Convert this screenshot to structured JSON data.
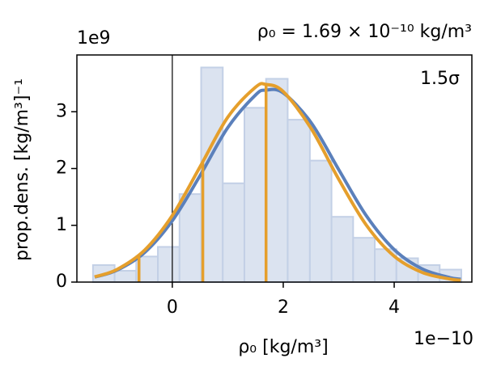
{
  "chart_data": {
    "type": "histogram",
    "title": "ρ₀ = 1.69 × 10⁻¹⁰ kg/m³",
    "annotation": "1.5σ",
    "xlabel": "ρ₀ [kg/m³]",
    "ylabel": "prop.dens. [kg/m³]⁻¹",
    "x_offset_label": "1e−10",
    "y_offset_label": "1e9",
    "bins": [
      -1.43,
      -1.04,
      -0.65,
      -0.26,
      0.13,
      0.52,
      0.91,
      1.3,
      1.69,
      2.08,
      2.48,
      2.87,
      3.26,
      3.65,
      4.04,
      4.43,
      4.82,
      5.21
    ],
    "values": [
      0.3,
      0.2,
      0.45,
      0.62,
      1.55,
      3.78,
      1.74,
      3.07,
      3.58,
      2.86,
      2.14,
      1.15,
      0.78,
      0.58,
      0.42,
      0.3,
      0.22
    ],
    "color": "#dbe3f0",
    "edgecolor": "#c3d0e6",
    "curves": [
      {
        "color": "#5b80bb",
        "x": [
          -1.4,
          -1.0,
          -0.5,
          0,
          0.5,
          1.0,
          1.5,
          1.69,
          2.0,
          2.5,
          3.0,
          3.5,
          4.0,
          4.5,
          5.0,
          5.2
        ],
        "values": [
          0.088,
          0.208,
          0.52,
          1.08,
          1.876,
          2.721,
          3.295,
          3.38,
          3.331,
          2.811,
          1.981,
          1.165,
          0.572,
          0.235,
          0.08,
          0.05
        ]
      },
      {
        "color": "#e59f2c",
        "x": [
          -1.4,
          -1.0,
          -0.5,
          0,
          0.5,
          1.0,
          1.5,
          1.69,
          2.0,
          2.5,
          3.0,
          3.5,
          4.0,
          4.5,
          5.0,
          5.2
        ],
        "values": [
          0.092,
          0.221,
          0.561,
          1.172,
          2.03,
          2.904,
          3.432,
          3.48,
          3.355,
          2.71,
          1.811,
          1.0,
          0.456,
          0.172,
          0.054,
          0.032
        ]
      }
    ],
    "markers": {
      "color": "#e59f2c",
      "x": [
        -0.6,
        0.55,
        1.69
      ],
      "values": [
        0.45,
        2.1,
        3.48
      ]
    },
    "axvline": 0,
    "xlim": [
      -1.72,
      5.4
    ],
    "ylim": [
      0,
      4.0
    ],
    "xticks": [
      0,
      2,
      4
    ],
    "yticks": [
      0,
      1,
      2,
      3
    ]
  }
}
